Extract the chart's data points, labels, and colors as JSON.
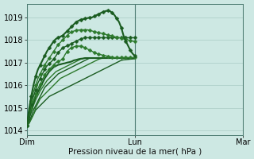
{
  "xlabel": "Pression niveau de la mer( hPa )",
  "bg_color": "#cde8e3",
  "grid_color": "#aaccC5",
  "ylim": [
    1013.8,
    1019.6
  ],
  "yticks": [
    1014,
    1015,
    1016,
    1017,
    1018,
    1019
  ],
  "xtick_labels": [
    "Dim",
    "Lun",
    "Mar"
  ],
  "xtick_positions": [
    0,
    48,
    96
  ],
  "vline_positions": [
    0,
    48,
    96
  ],
  "series": [
    {
      "y": [
        1014.2,
        1014.3,
        1014.5,
        1014.7,
        1014.9,
        1015.0,
        1015.1,
        1015.2,
        1015.3,
        1015.4,
        1015.5,
        1015.55,
        1015.6,
        1015.65,
        1015.7,
        1015.75,
        1015.8,
        1015.85,
        1015.9,
        1015.95,
        1016.0,
        1016.05,
        1016.1,
        1016.15,
        1016.2,
        1016.25,
        1016.3,
        1016.35,
        1016.4,
        1016.45,
        1016.5,
        1016.55,
        1016.6,
        1016.65,
        1016.7,
        1016.75,
        1016.8,
        1016.85,
        1016.9,
        1016.95,
        1017.0,
        1017.05,
        1017.1,
        1017.12,
        1017.13,
        1017.14,
        1017.15,
        1017.16,
        1017.17
      ],
      "color": "#1a5c20",
      "marker": null,
      "lw": 1.0
    },
    {
      "y": [
        1014.2,
        1014.3,
        1014.5,
        1014.7,
        1015.0,
        1015.2,
        1015.4,
        1015.5,
        1015.6,
        1015.7,
        1015.8,
        1015.9,
        1016.0,
        1016.1,
        1016.2,
        1016.3,
        1016.35,
        1016.4,
        1016.45,
        1016.5,
        1016.55,
        1016.6,
        1016.65,
        1016.7,
        1016.75,
        1016.8,
        1016.85,
        1016.9,
        1016.95,
        1017.0,
        1017.05,
        1017.1,
        1017.15,
        1017.18,
        1017.2,
        1017.2,
        1017.2,
        1017.2,
        1017.2,
        1017.2,
        1017.2,
        1017.2,
        1017.2,
        1017.2,
        1017.2,
        1017.2,
        1017.2,
        1017.2,
        1017.2
      ],
      "color": "#2d7a2d",
      "marker": null,
      "lw": 1.0
    },
    {
      "y": [
        1014.2,
        1014.4,
        1014.6,
        1014.9,
        1015.1,
        1015.3,
        1015.5,
        1015.7,
        1015.9,
        1016.0,
        1016.1,
        1016.2,
        1016.3,
        1016.4,
        1016.5,
        1016.55,
        1016.6,
        1016.65,
        1016.7,
        1016.75,
        1016.8,
        1016.85,
        1016.9,
        1016.95,
        1017.0,
        1017.05,
        1017.1,
        1017.15,
        1017.2,
        1017.2,
        1017.2,
        1017.2,
        1017.2,
        1017.2,
        1017.2,
        1017.2,
        1017.2,
        1017.2,
        1017.2,
        1017.2,
        1017.2,
        1017.2,
        1017.2,
        1017.2,
        1017.2,
        1017.2,
        1017.2,
        1017.2,
        1017.2
      ],
      "color": "#1a5c20",
      "marker": null,
      "lw": 1.0
    },
    {
      "y": [
        1014.2,
        1014.5,
        1014.8,
        1015.1,
        1015.35,
        1015.55,
        1015.75,
        1015.9,
        1016.05,
        1016.2,
        1016.3,
        1016.4,
        1016.5,
        1016.6,
        1016.65,
        1016.7,
        1016.75,
        1016.8,
        1016.85,
        1016.9,
        1016.95,
        1017.0,
        1017.05,
        1017.1,
        1017.15,
        1017.18,
        1017.2,
        1017.2,
        1017.2,
        1017.2,
        1017.2,
        1017.2,
        1017.2,
        1017.2,
        1017.2,
        1017.2,
        1017.2,
        1017.2,
        1017.2,
        1017.2,
        1017.2,
        1017.2,
        1017.2,
        1017.2,
        1017.2,
        1017.2,
        1017.2,
        1017.2,
        1017.2
      ],
      "color": "#2d7a2d",
      "marker": null,
      "lw": 1.0
    },
    {
      "y": [
        1014.2,
        1014.5,
        1014.9,
        1015.2,
        1015.5,
        1015.7,
        1015.9,
        1016.1,
        1016.3,
        1016.45,
        1016.6,
        1016.7,
        1016.8,
        1016.85,
        1016.9,
        1016.92,
        1016.95,
        1016.97,
        1017.0,
        1017.02,
        1017.05,
        1017.1,
        1017.12,
        1017.15,
        1017.17,
        1017.18,
        1017.2,
        1017.2,
        1017.2,
        1017.2,
        1017.2,
        1017.2,
        1017.2,
        1017.2,
        1017.2,
        1017.2,
        1017.2,
        1017.2,
        1017.2,
        1017.2,
        1017.2,
        1017.2,
        1017.2,
        1017.2,
        1017.2,
        1017.2,
        1017.2,
        1017.2,
        1017.2
      ],
      "color": "#1a5c20",
      "marker": null,
      "lw": 1.5
    },
    {
      "y": [
        1014.2,
        1014.6,
        1015.0,
        1015.3,
        1015.6,
        1015.85,
        1016.05,
        1016.25,
        1016.45,
        1016.6,
        1016.7,
        1016.8,
        1016.9,
        1017.0,
        1017.05,
        1017.1,
        1017.15,
        1017.35,
        1017.5,
        1017.6,
        1017.65,
        1017.7,
        1017.72,
        1017.73,
        1017.73,
        1017.7,
        1017.65,
        1017.6,
        1017.55,
        1017.5,
        1017.45,
        1017.4,
        1017.37,
        1017.35,
        1017.32,
        1017.3,
        1017.28,
        1017.26,
        1017.24,
        1017.22,
        1017.22,
        1017.22,
        1017.22,
        1017.22,
        1017.22,
        1017.22,
        1017.22,
        1017.22,
        1017.22
      ],
      "color": "#2d7a2d",
      "marker": "D",
      "lw": 1.0
    },
    {
      "y": [
        1014.2,
        1014.7,
        1015.15,
        1015.5,
        1015.8,
        1016.1,
        1016.3,
        1016.5,
        1016.7,
        1016.85,
        1016.95,
        1017.05,
        1017.15,
        1017.3,
        1017.45,
        1017.55,
        1017.65,
        1017.7,
        1017.75,
        1017.8,
        1017.85,
        1017.9,
        1017.95,
        1018.0,
        1018.05,
        1018.08,
        1018.1,
        1018.1,
        1018.1,
        1018.1,
        1018.1,
        1018.1,
        1018.1,
        1018.1,
        1018.1,
        1018.1,
        1018.1,
        1018.1,
        1018.1,
        1018.1,
        1018.1,
        1018.1,
        1018.1,
        1018.1,
        1018.1,
        1018.1,
        1018.1,
        1018.1,
        1018.1
      ],
      "color": "#1a5c20",
      "marker": "D",
      "lw": 1.0
    },
    {
      "y": [
        1014.2,
        1014.8,
        1015.3,
        1015.7,
        1016.0,
        1016.3,
        1016.5,
        1016.7,
        1016.9,
        1017.05,
        1017.2,
        1017.35,
        1017.5,
        1017.65,
        1017.8,
        1017.9,
        1018.0,
        1018.1,
        1018.2,
        1018.3,
        1018.35,
        1018.4,
        1018.42,
        1018.44,
        1018.45,
        1018.45,
        1018.45,
        1018.45,
        1018.43,
        1018.4,
        1018.37,
        1018.35,
        1018.32,
        1018.3,
        1018.28,
        1018.25,
        1018.22,
        1018.2,
        1018.18,
        1018.15,
        1018.12,
        1018.1,
        1018.08,
        1018.05,
        1018.03,
        1018.0,
        1017.98,
        1017.95,
        1017.93
      ],
      "color": "#2d7a2d",
      "marker": "D",
      "lw": 1.0
    },
    {
      "y": [
        1014.2,
        1014.9,
        1015.5,
        1016.0,
        1016.4,
        1016.7,
        1016.9,
        1017.1,
        1017.3,
        1017.5,
        1017.65,
        1017.8,
        1017.95,
        1018.05,
        1018.1,
        1018.15,
        1018.2,
        1018.3,
        1018.4,
        1018.5,
        1018.6,
        1018.7,
        1018.8,
        1018.85,
        1018.9,
        1018.92,
        1018.95,
        1018.97,
        1018.99,
        1019.0,
        1019.05,
        1019.1,
        1019.15,
        1019.2,
        1019.25,
        1019.28,
        1019.3,
        1019.28,
        1019.2,
        1019.1,
        1018.95,
        1018.8,
        1018.55,
        1018.2,
        1017.95,
        1017.75,
        1017.55,
        1017.4,
        1017.3
      ],
      "color": "#1a5c20",
      "marker": "D",
      "lw": 1.5
    }
  ],
  "markersize": 2.5,
  "markevery": 2
}
